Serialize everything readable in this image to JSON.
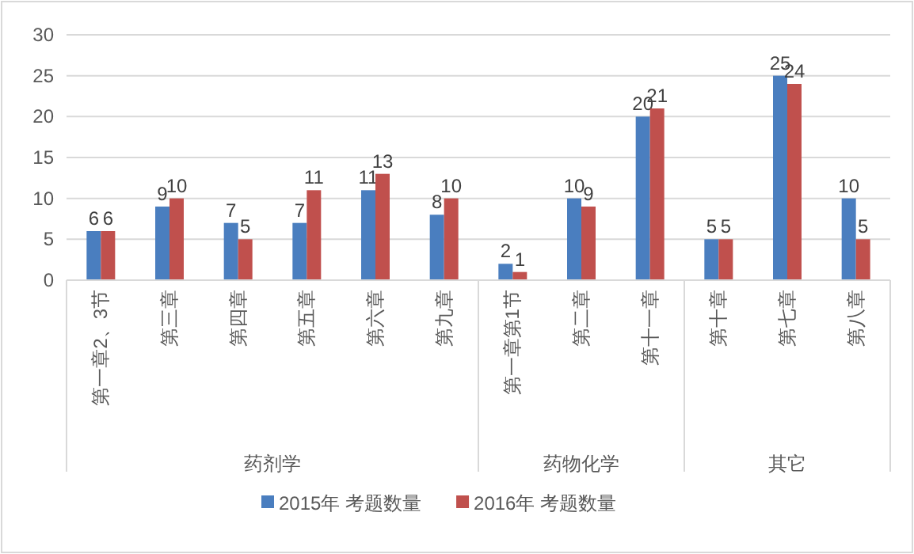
{
  "chart_data": {
    "type": "bar",
    "categories": [
      "第一章2、3节",
      "第三章",
      "第四章",
      "第五章",
      "第六章",
      "第九章",
      "第一章第1节",
      "第二章",
      "第十一章",
      "第十章",
      "第七章",
      "第八章"
    ],
    "series": [
      {
        "name": "2015年 考题数量",
        "color": "#4a7ebf",
        "values": [
          6,
          9,
          7,
          7,
          11,
          8,
          2,
          10,
          20,
          5,
          25,
          10
        ]
      },
      {
        "name": "2016年 考题数量",
        "color": "#c0504d",
        "values": [
          6,
          10,
          5,
          11,
          13,
          10,
          1,
          9,
          21,
          5,
          24,
          5
        ]
      }
    ],
    "ylim": [
      0,
      30
    ],
    "yticks": [
      0,
      5,
      10,
      15,
      20,
      25,
      30
    ],
    "grid": "y",
    "legend": "bottom",
    "data_labels": true,
    "annotations": [
      "药剂学",
      "药物化学",
      "其它"
    ]
  }
}
